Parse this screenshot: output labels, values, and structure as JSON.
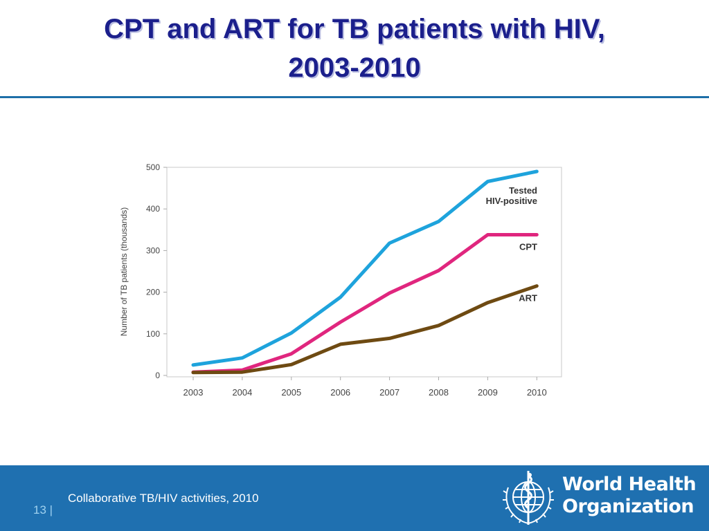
{
  "slide": {
    "title_line1": "CPT and ART for TB patients with HIV,",
    "title_line2": "2003-2010",
    "page_number": "13",
    "page_separator": "|",
    "caption": "Collaborative TB/HIV activities, 2010",
    "logo": {
      "line1": "World Health",
      "line2": "Organization",
      "emblem": "who-emblem-icon"
    }
  },
  "colors": {
    "title": "#1b1f8c",
    "footer": "#1f70b0",
    "tested": "#1ea3dc",
    "cpt": "#e0267e",
    "art": "#6e4a12"
  },
  "chart_data": {
    "type": "line",
    "x": [
      2003,
      2004,
      2005,
      2006,
      2007,
      2008,
      2009,
      2010
    ],
    "ylabel": "Number of TB patients (thousands)",
    "ylim": [
      0,
      500
    ],
    "yticks": [
      0,
      100,
      200,
      300,
      400,
      500
    ],
    "grid": false,
    "series": [
      {
        "name": "Tested HIV-positive",
        "label_lines": [
          "Tested",
          "HIV-positive"
        ],
        "color": "#1ea3dc",
        "values": [
          25,
          42,
          102,
          188,
          318,
          370,
          466,
          490
        ]
      },
      {
        "name": "CPT",
        "label_lines": [
          "CPT"
        ],
        "color": "#e0267e",
        "values": [
          8,
          13,
          52,
          128,
          198,
          252,
          338,
          338
        ]
      },
      {
        "name": "ART",
        "label_lines": [
          "ART"
        ],
        "color": "#6e4a12",
        "values": [
          7,
          8,
          26,
          75,
          89,
          120,
          175,
          215
        ]
      }
    ]
  }
}
